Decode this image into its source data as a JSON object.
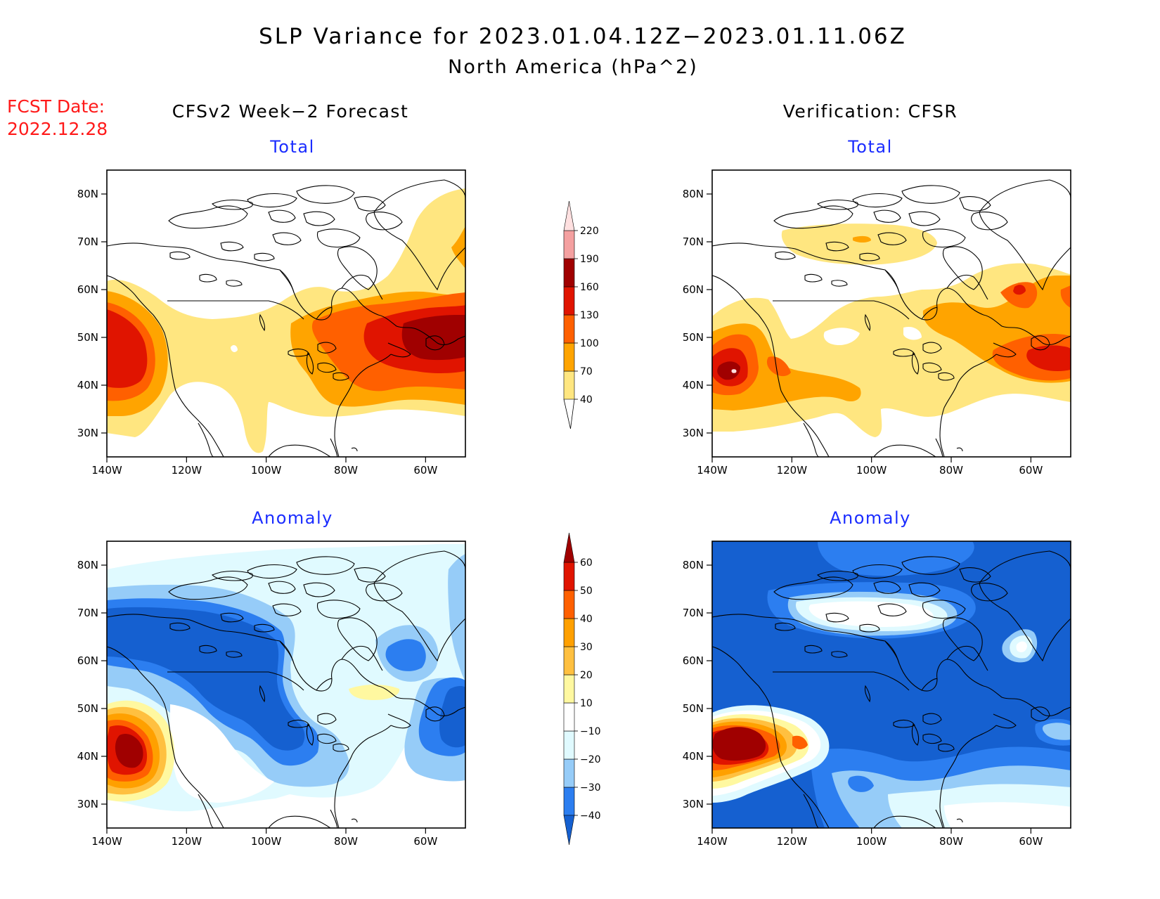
{
  "title": "SLP Variance for 2023.01.04.12Z−2023.01.11.06Z",
  "subtitle": "North America (hPa^2)",
  "fcst_date_label": "FCST Date:",
  "fcst_date": "2022.12.28",
  "left_column_title": "CFSv2 Week−2 Forecast",
  "right_column_title": "Verification: CFSR",
  "panels": {
    "forecast_total": {
      "title": "Total"
    },
    "verification_total": {
      "title": "Total"
    },
    "forecast_anomaly": {
      "title": "Anomaly"
    },
    "verification_anomaly": {
      "title": "Anomaly"
    }
  },
  "axes": {
    "lon_labels": [
      "140W",
      "120W",
      "100W",
      "80W",
      "60W"
    ],
    "lon_values": [
      -140,
      -120,
      -100,
      -80,
      -60
    ],
    "lat_labels": [
      "30N",
      "40N",
      "50N",
      "60N",
      "70N",
      "80N"
    ],
    "lat_values": [
      30,
      40,
      50,
      60,
      70,
      80
    ],
    "lon_range": [
      -140,
      -50
    ],
    "lat_range": [
      25,
      85
    ]
  },
  "colorbar_total": {
    "labels": [
      "40",
      "70",
      "100",
      "130",
      "160",
      "190",
      "220"
    ],
    "colors": [
      "#ffe680",
      "#ffa400",
      "#ff6000",
      "#e01400",
      "#a00000",
      "#f4a0a0",
      "#ffe0e0"
    ]
  },
  "colorbar_anomaly": {
    "labels": [
      "−40",
      "−30",
      "−20",
      "−10",
      "10",
      "20",
      "30",
      "40",
      "50",
      "60"
    ],
    "colors": [
      "#1560d0",
      "#2c7ef0",
      "#96ccf8",
      "#e0faff",
      "#ffffff",
      "#fff8a0",
      "#ffc040",
      "#ffa000",
      "#ff6000",
      "#e01400",
      "#a00000"
    ]
  },
  "palette": {
    "total": {
      "t40": "#ffe680",
      "t70": "#ffa400",
      "t100": "#ff6000",
      "t130": "#e01400",
      "t160": "#a00000"
    },
    "anomaly": {
      "n40": "#1560d0",
      "n30": "#2c7ef0",
      "n20": "#96ccf8",
      "n10": "#e0faff",
      "p10": "#fff8a0",
      "p20": "#ffc040",
      "p30": "#ffa000",
      "p40": "#ff6000",
      "p50": "#e01400",
      "p60": "#a00000"
    }
  }
}
